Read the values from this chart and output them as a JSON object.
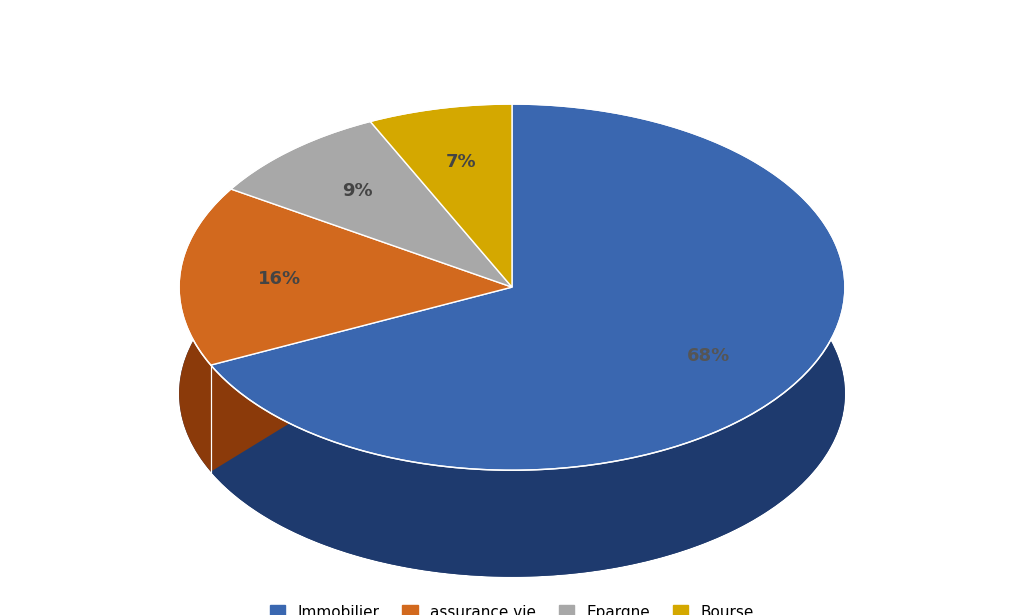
{
  "labels": [
    "Immobilier",
    "assurance vie",
    "Epargne",
    "Bourse"
  ],
  "values": [
    68,
    16,
    9,
    7
  ],
  "colors": [
    "#3A67B0",
    "#D2691E",
    "#A8A8A8",
    "#D4A800"
  ],
  "dark_colors": [
    "#1E3A6E",
    "#8B3A0A",
    "#606060",
    "#8B6E00"
  ],
  "pct_labels": [
    "68%",
    "16%",
    "9%",
    "7%"
  ],
  "pct_colors": [
    "#555555",
    "#555555",
    "#555555",
    "#555555"
  ],
  "background_color": "#FFFFFF",
  "legend_labels": [
    "Immobilier",
    "assurance vie",
    "Epargne",
    "Bourse"
  ],
  "startangle": 90,
  "figsize": [
    10.24,
    6.15
  ],
  "dpi": 100
}
